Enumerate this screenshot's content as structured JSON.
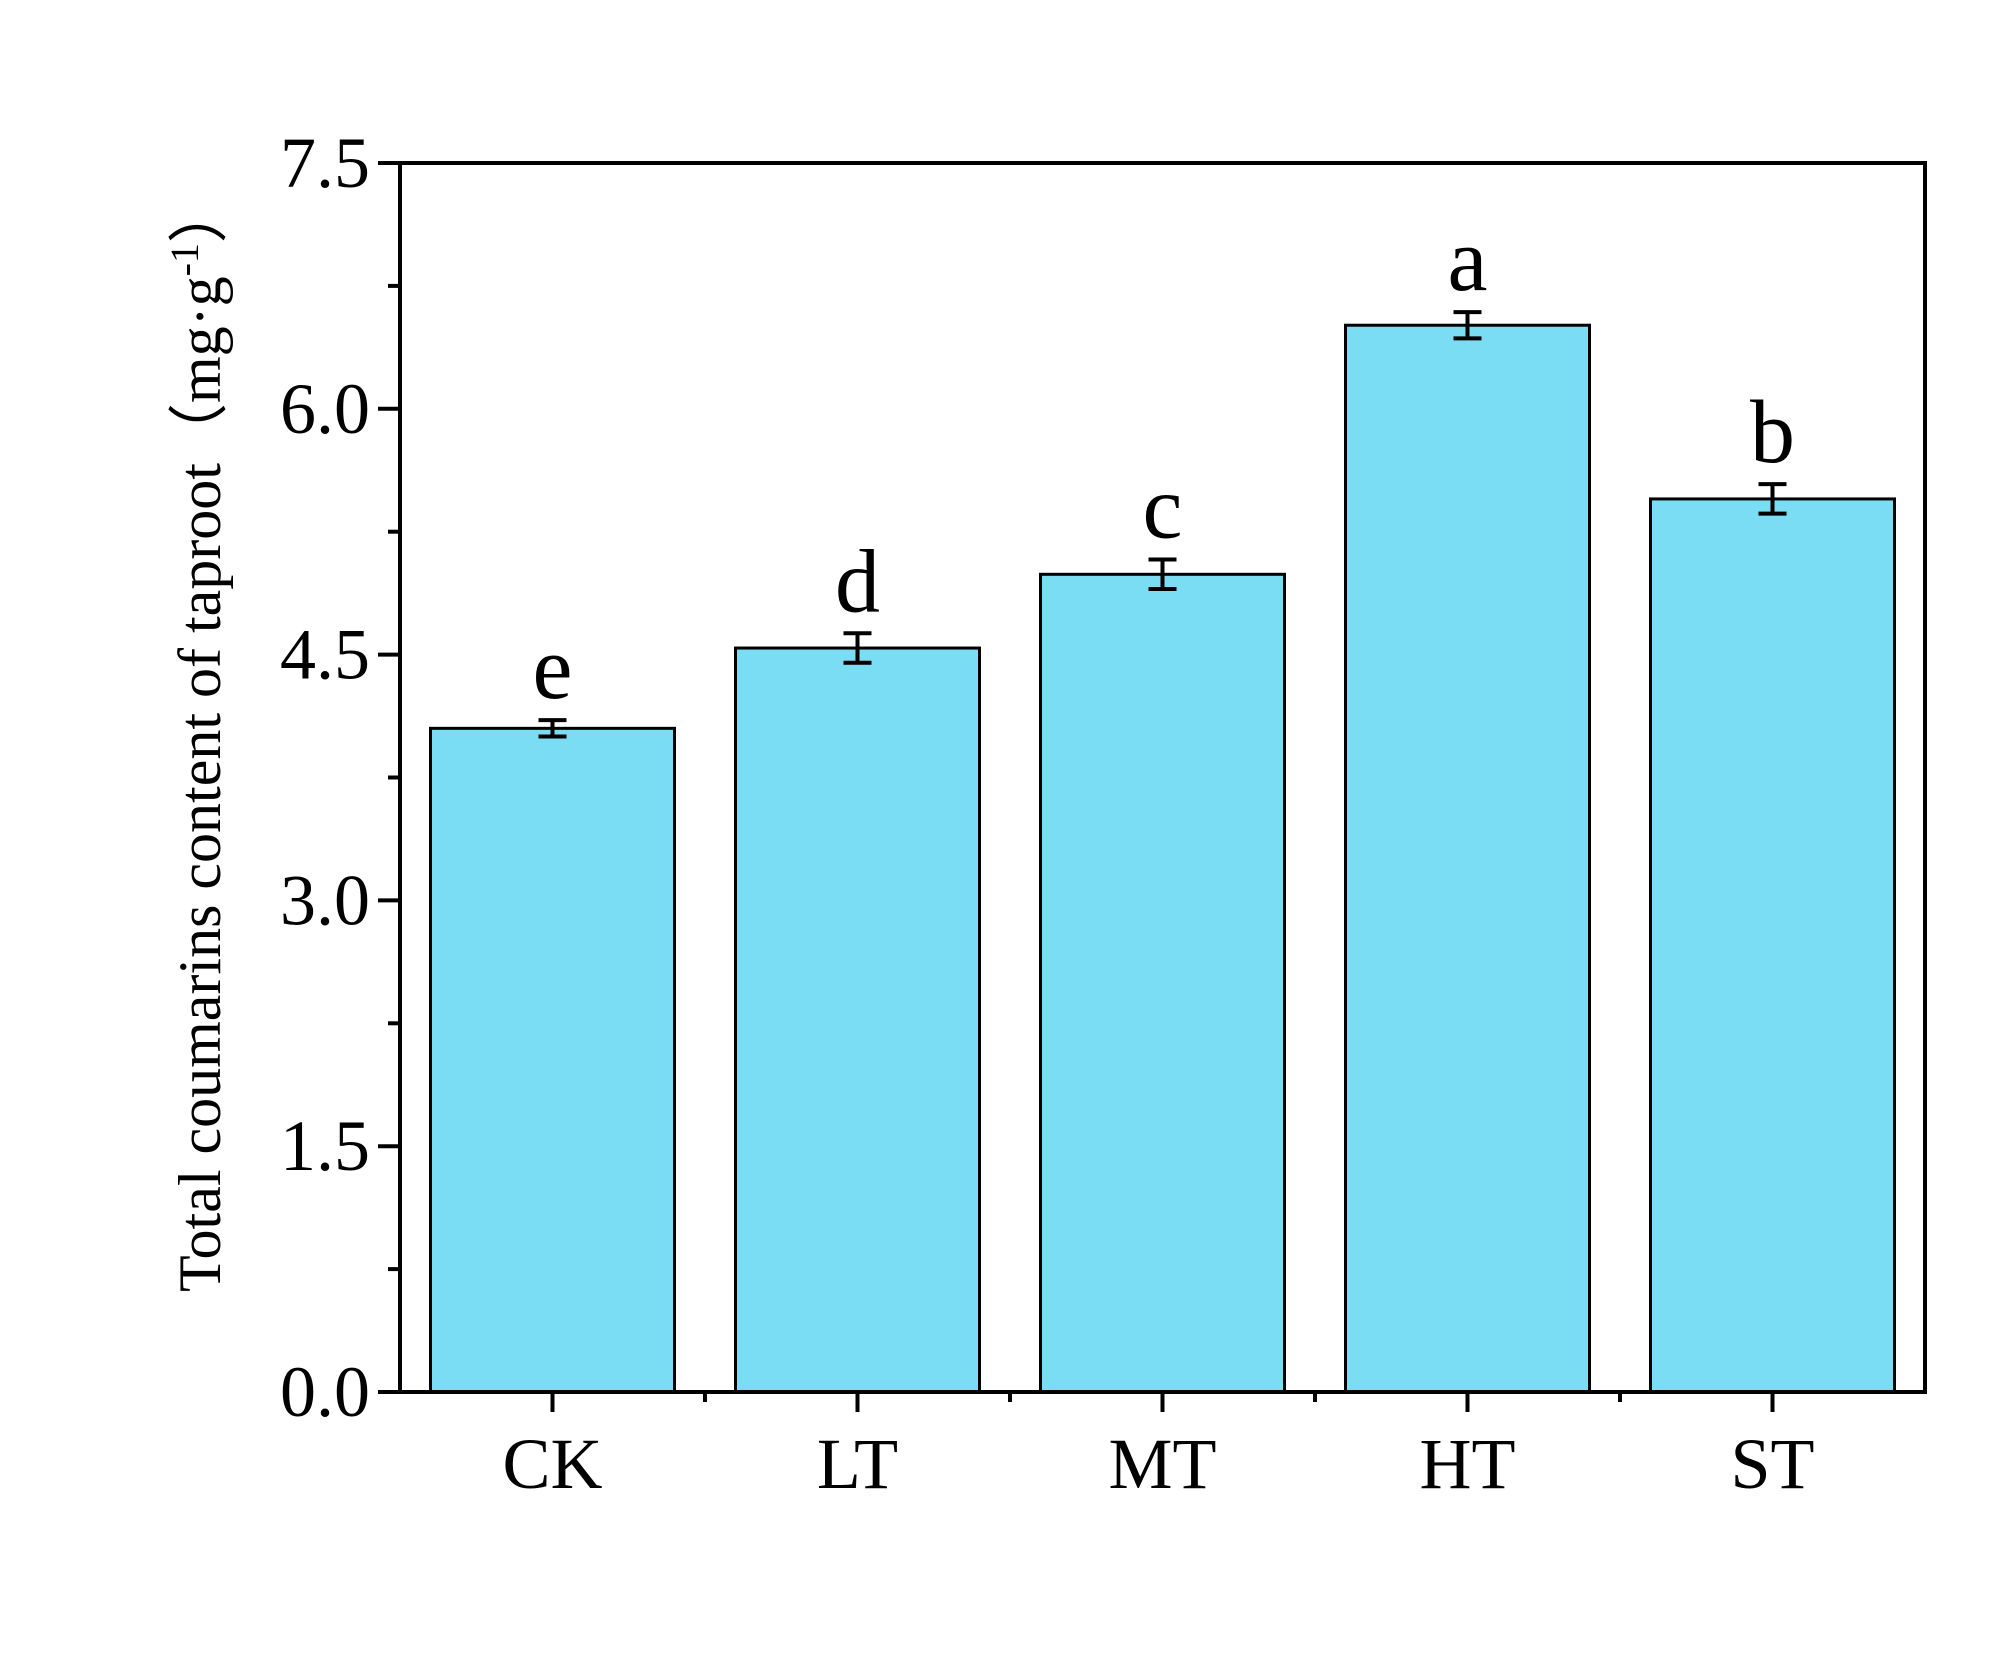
{
  "chart_data": {
    "type": "bar",
    "categories": [
      "CK",
      "LT",
      "MT",
      "HT",
      "ST"
    ],
    "values": [
      4.05,
      4.54,
      4.99,
      6.51,
      5.45
    ],
    "errors": [
      0.05,
      0.09,
      0.09,
      0.08,
      0.09
    ],
    "significance": [
      "e",
      "d",
      "c",
      "a",
      "b"
    ],
    "xlabel": "",
    "ylabel": "Total coumarins content of taproot（mg·g",
    "ylabel_superscript": "-1",
    "ylabel_close": "）",
    "ylim": [
      0,
      7.5
    ],
    "yticks": [
      "0.0",
      "1.5",
      "3.0",
      "4.5",
      "6.0",
      "7.5"
    ],
    "ytick_values": [
      0,
      1.5,
      3.0,
      4.5,
      6.0,
      7.5
    ],
    "bar_color": "#7BDDF3",
    "edge_color": "#000000",
    "grid": false,
    "legend": "none"
  }
}
